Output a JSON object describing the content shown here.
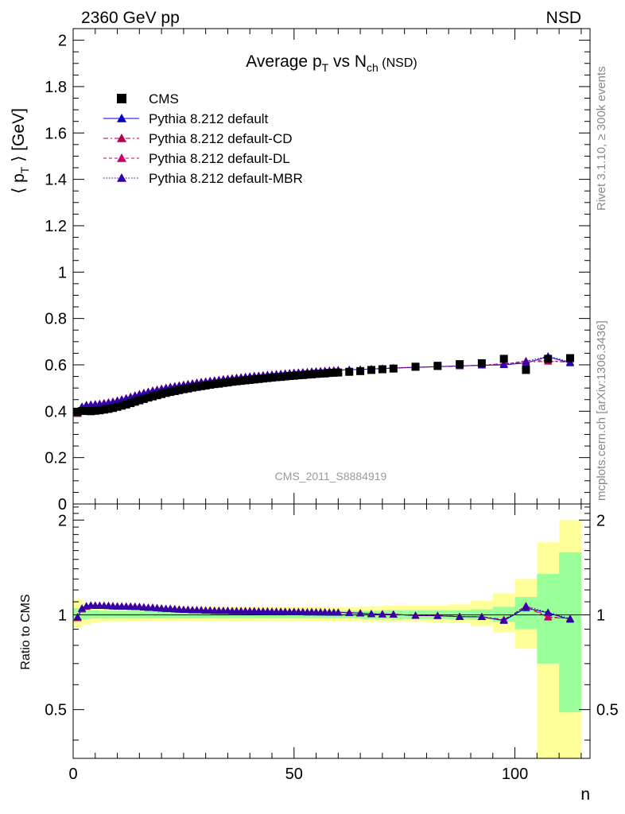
{
  "header": {
    "left": "2360 GeV pp",
    "right": "NSD"
  },
  "side": {
    "rivet": "Rivet 3.1.10, ≥ 300k events",
    "mcplots": "mcplots.cern.ch [arXiv:1306.3436]"
  },
  "main": {
    "title_main": "Average p",
    "title_sub_t": "T",
    "title_vs": " vs N",
    "title_sub_ch": "ch",
    "title_tag": " (NSD)",
    "ylabel_pre": "⟨ p",
    "ylabel_sub": "T",
    "ylabel_post": " ⟩ [GeV]",
    "analysis": "CMS_2011_S8884919",
    "legend": [
      {
        "label": "CMS"
      },
      {
        "label": "Pythia 8.212 default"
      },
      {
        "label": "Pythia 8.212 default-CD"
      },
      {
        "label": "Pythia 8.212 default-DL"
      },
      {
        "label": "Pythia 8.212 default-MBR"
      }
    ]
  },
  "ratio": {
    "ylabel": "Ratio to CMS"
  },
  "xaxis": {
    "label": "n"
  },
  "colors": {
    "cms": "#000000",
    "default": "#0000cc",
    "cd": "#b0004a",
    "dl": "#c8006e",
    "mbr": "#3300aa",
    "band_inner": "#99ff99",
    "band_outer": "#ffff99"
  },
  "chart_data": {
    "type": "scatter",
    "x_range": [
      0,
      117
    ],
    "main_ylim": [
      0,
      2.05
    ],
    "ratio_ylim": [
      0.35,
      2.25
    ],
    "x_ticks": [
      0,
      50,
      100
    ],
    "main_y_ticks": [
      "0",
      "0.2",
      "0.4",
      "0.6",
      "0.8",
      "1",
      "1.2",
      "1.4",
      "1.6",
      "1.8",
      "2"
    ],
    "ratio_y_ticks": [
      "0.5",
      "1",
      "2"
    ],
    "cms": {
      "x": [
        1,
        2,
        3,
        4,
        5,
        6,
        7,
        8,
        9,
        10,
        11,
        12,
        13,
        14,
        15,
        16,
        17,
        18,
        19,
        20,
        21,
        22,
        23,
        24,
        25,
        26,
        27,
        28,
        29,
        30,
        31,
        32,
        33,
        34,
        35,
        36,
        37,
        38,
        39,
        40,
        41,
        42,
        43,
        44,
        45,
        46,
        47,
        48,
        49,
        50,
        51,
        52,
        53,
        54,
        55,
        56,
        57,
        58,
        59,
        60,
        62.5,
        65,
        67.5,
        70,
        72.5,
        77.5,
        82.5,
        87.5,
        92.5,
        97.5,
        102.5,
        107.5,
        112.5
      ],
      "y": [
        0.398,
        0.401,
        0.401,
        0.4,
        0.402,
        0.404,
        0.407,
        0.41,
        0.414,
        0.419,
        0.424,
        0.429,
        0.435,
        0.441,
        0.447,
        0.453,
        0.459,
        0.464,
        0.469,
        0.474,
        0.479,
        0.483,
        0.487,
        0.491,
        0.495,
        0.498,
        0.502,
        0.505,
        0.508,
        0.511,
        0.514,
        0.517,
        0.519,
        0.522,
        0.524,
        0.527,
        0.529,
        0.531,
        0.533,
        0.535,
        0.537,
        0.539,
        0.541,
        0.543,
        0.545,
        0.547,
        0.548,
        0.55,
        0.552,
        0.553,
        0.555,
        0.556,
        0.558,
        0.559,
        0.561,
        0.562,
        0.563,
        0.565,
        0.566,
        0.567,
        0.57,
        0.573,
        0.578,
        0.581,
        0.584,
        0.592,
        0.596,
        0.603,
        0.607,
        0.626,
        0.578,
        0.626,
        0.629
      ]
    },
    "series": [
      {
        "name": "Pythia 8.212 default",
        "x": [
          1,
          2,
          3,
          4,
          5,
          6,
          7,
          8,
          9,
          10,
          11,
          12,
          13,
          14,
          15,
          16,
          17,
          18,
          19,
          20,
          21,
          22,
          23,
          24,
          25,
          26,
          27,
          28,
          29,
          30,
          31,
          32,
          33,
          34,
          35,
          36,
          37,
          38,
          39,
          40,
          41,
          42,
          43,
          44,
          45,
          46,
          47,
          48,
          49,
          50,
          51,
          52,
          53,
          54,
          55,
          56,
          57,
          58,
          59,
          60,
          62.5,
          65,
          67.5,
          70,
          72.5,
          77.5,
          82.5,
          87.5,
          92.5,
          97.5,
          102.5,
          107.5,
          112.5
        ],
        "y": [
          0.39,
          0.42,
          0.427,
          0.428,
          0.43,
          0.432,
          0.435,
          0.438,
          0.441,
          0.446,
          0.451,
          0.456,
          0.462,
          0.468,
          0.474,
          0.479,
          0.484,
          0.489,
          0.493,
          0.497,
          0.501,
          0.505,
          0.508,
          0.511,
          0.514,
          0.517,
          0.52,
          0.523,
          0.526,
          0.528,
          0.531,
          0.533,
          0.535,
          0.538,
          0.54,
          0.542,
          0.544,
          0.546,
          0.548,
          0.55,
          0.552,
          0.553,
          0.555,
          0.557,
          0.558,
          0.56,
          0.561,
          0.563,
          0.564,
          0.566,
          0.567,
          0.568,
          0.569,
          0.571,
          0.572,
          0.573,
          0.574,
          0.575,
          0.576,
          0.577,
          0.579,
          0.58,
          0.582,
          0.584,
          0.586,
          0.589,
          0.592,
          0.595,
          0.598,
          0.6,
          0.608,
          0.635,
          0.608
        ]
      },
      {
        "name": "Pythia 8.212 default-CD",
        "x": [
          1,
          2,
          3,
          4,
          5,
          6,
          7,
          8,
          9,
          10,
          11,
          12,
          13,
          14,
          15,
          16,
          17,
          18,
          19,
          20,
          21,
          22,
          23,
          24,
          25,
          26,
          27,
          28,
          29,
          30,
          31,
          32,
          33,
          34,
          35,
          36,
          37,
          38,
          39,
          40,
          41,
          42,
          43,
          44,
          45,
          46,
          47,
          48,
          49,
          50,
          51,
          52,
          53,
          54,
          55,
          56,
          57,
          58,
          59,
          60,
          62.5,
          65,
          67.5,
          70,
          72.5,
          77.5,
          82.5,
          87.5,
          92.5,
          97.5,
          102.5,
          107.5,
          112.5
        ],
        "y": [
          0.389,
          0.418,
          0.427,
          0.429,
          0.431,
          0.433,
          0.436,
          0.439,
          0.442,
          0.447,
          0.452,
          0.457,
          0.463,
          0.469,
          0.475,
          0.48,
          0.485,
          0.49,
          0.494,
          0.498,
          0.502,
          0.506,
          0.509,
          0.512,
          0.515,
          0.518,
          0.521,
          0.524,
          0.527,
          0.529,
          0.532,
          0.534,
          0.536,
          0.539,
          0.541,
          0.543,
          0.545,
          0.547,
          0.549,
          0.551,
          0.553,
          0.554,
          0.556,
          0.558,
          0.559,
          0.561,
          0.562,
          0.564,
          0.565,
          0.567,
          0.568,
          0.569,
          0.57,
          0.572,
          0.573,
          0.574,
          0.575,
          0.576,
          0.577,
          0.578,
          0.58,
          0.581,
          0.583,
          0.585,
          0.587,
          0.59,
          0.593,
          0.596,
          0.599,
          0.605,
          0.612,
          0.615,
          0.612
        ]
      },
      {
        "name": "Pythia 8.212 default-DL",
        "x": [
          1,
          2,
          3,
          4,
          5,
          6,
          7,
          8,
          9,
          10,
          11,
          12,
          13,
          14,
          15,
          16,
          17,
          18,
          19,
          20,
          21,
          22,
          23,
          24,
          25,
          26,
          27,
          28,
          29,
          30,
          31,
          32,
          33,
          34,
          35,
          36,
          37,
          38,
          39,
          40,
          41,
          42,
          43,
          44,
          45,
          46,
          47,
          48,
          49,
          50,
          51,
          52,
          53,
          54,
          55,
          56,
          57,
          58,
          59,
          60,
          62.5,
          65,
          67.5,
          70,
          72.5,
          77.5,
          82.5,
          87.5,
          92.5,
          97.5,
          102.5,
          107.5,
          112.5
        ],
        "y": [
          0.392,
          0.42,
          0.426,
          0.428,
          0.431,
          0.433,
          0.435,
          0.438,
          0.442,
          0.446,
          0.451,
          0.457,
          0.463,
          0.469,
          0.474,
          0.479,
          0.484,
          0.489,
          0.493,
          0.497,
          0.501,
          0.505,
          0.508,
          0.511,
          0.514,
          0.517,
          0.52,
          0.523,
          0.526,
          0.528,
          0.531,
          0.533,
          0.535,
          0.538,
          0.54,
          0.542,
          0.544,
          0.546,
          0.548,
          0.55,
          0.552,
          0.553,
          0.555,
          0.557,
          0.558,
          0.56,
          0.561,
          0.563,
          0.564,
          0.566,
          0.567,
          0.568,
          0.569,
          0.571,
          0.572,
          0.573,
          0.574,
          0.575,
          0.576,
          0.577,
          0.579,
          0.58,
          0.582,
          0.584,
          0.586,
          0.589,
          0.592,
          0.595,
          0.598,
          0.602,
          0.618,
          0.618,
          0.612
        ]
      },
      {
        "name": "Pythia 8.212 default-MBR",
        "x": [
          1,
          2,
          3,
          4,
          5,
          6,
          7,
          8,
          9,
          10,
          11,
          12,
          13,
          14,
          15,
          16,
          17,
          18,
          19,
          20,
          21,
          22,
          23,
          24,
          25,
          26,
          27,
          28,
          29,
          30,
          31,
          32,
          33,
          34,
          35,
          36,
          37,
          38,
          39,
          40,
          41,
          42,
          43,
          44,
          45,
          46,
          47,
          48,
          49,
          50,
          51,
          52,
          53,
          54,
          55,
          56,
          57,
          58,
          59,
          60,
          62.5,
          65,
          67.5,
          70,
          72.5,
          77.5,
          82.5,
          87.5,
          92.5,
          97.5,
          102.5,
          107.5,
          112.5
        ],
        "y": [
          0.392,
          0.421,
          0.428,
          0.429,
          0.43,
          0.432,
          0.435,
          0.438,
          0.441,
          0.446,
          0.451,
          0.456,
          0.462,
          0.468,
          0.474,
          0.479,
          0.484,
          0.489,
          0.493,
          0.497,
          0.501,
          0.505,
          0.508,
          0.511,
          0.514,
          0.517,
          0.52,
          0.523,
          0.526,
          0.528,
          0.531,
          0.533,
          0.535,
          0.538,
          0.54,
          0.542,
          0.544,
          0.546,
          0.548,
          0.55,
          0.552,
          0.553,
          0.555,
          0.557,
          0.558,
          0.56,
          0.561,
          0.563,
          0.564,
          0.566,
          0.567,
          0.568,
          0.569,
          0.571,
          0.572,
          0.573,
          0.574,
          0.575,
          0.576,
          0.577,
          0.579,
          0.58,
          0.582,
          0.584,
          0.586,
          0.589,
          0.592,
          0.595,
          0.598,
          0.602,
          0.615,
          0.638,
          0.612
        ]
      }
    ],
    "uncertainty_bands": {
      "x_edges": [
        0,
        2,
        4,
        6,
        8,
        10,
        12,
        14,
        16,
        18,
        20,
        25,
        30,
        35,
        40,
        45,
        50,
        55,
        60,
        65,
        70,
        75,
        80,
        85,
        90,
        95,
        100,
        105,
        110,
        115
      ],
      "inner": [
        [
          0.96,
          1.05
        ],
        [
          0.97,
          1.04
        ],
        [
          0.975,
          1.035
        ],
        [
          0.975,
          1.03
        ],
        [
          0.975,
          1.03
        ],
        [
          0.975,
          1.03
        ],
        [
          0.975,
          1.03
        ],
        [
          0.975,
          1.03
        ],
        [
          0.975,
          1.03
        ],
        [
          0.975,
          1.03
        ],
        [
          0.975,
          1.03
        ],
        [
          0.975,
          1.03
        ],
        [
          0.975,
          1.03
        ],
        [
          0.975,
          1.03
        ],
        [
          0.975,
          1.03
        ],
        [
          0.975,
          1.03
        ],
        [
          0.975,
          1.03
        ],
        [
          0.975,
          1.03
        ],
        [
          0.975,
          1.03
        ],
        [
          0.97,
          1.03
        ],
        [
          0.97,
          1.035
        ],
        [
          0.97,
          1.035
        ],
        [
          0.97,
          1.035
        ],
        [
          0.965,
          1.035
        ],
        [
          0.965,
          1.04
        ],
        [
          0.95,
          1.06
        ],
        [
          0.9,
          1.14
        ],
        [
          0.7,
          1.35
        ],
        [
          0.49,
          1.58
        ]
      ],
      "outer": [
        [
          0.91,
          1.12
        ],
        [
          0.93,
          1.09
        ],
        [
          0.945,
          1.07
        ],
        [
          0.95,
          1.065
        ],
        [
          0.95,
          1.06
        ],
        [
          0.95,
          1.06
        ],
        [
          0.955,
          1.06
        ],
        [
          0.955,
          1.06
        ],
        [
          0.955,
          1.06
        ],
        [
          0.955,
          1.06
        ],
        [
          0.955,
          1.06
        ],
        [
          0.955,
          1.06
        ],
        [
          0.955,
          1.06
        ],
        [
          0.955,
          1.06
        ],
        [
          0.955,
          1.06
        ],
        [
          0.955,
          1.06
        ],
        [
          0.955,
          1.06
        ],
        [
          0.955,
          1.06
        ],
        [
          0.955,
          1.06
        ],
        [
          0.95,
          1.065
        ],
        [
          0.95,
          1.07
        ],
        [
          0.95,
          1.07
        ],
        [
          0.945,
          1.07
        ],
        [
          0.94,
          1.08
        ],
        [
          0.92,
          1.11
        ],
        [
          0.88,
          1.17
        ],
        [
          0.78,
          1.3
        ],
        [
          0.3,
          1.7
        ],
        [
          0.3,
          2.0
        ]
      ]
    }
  }
}
